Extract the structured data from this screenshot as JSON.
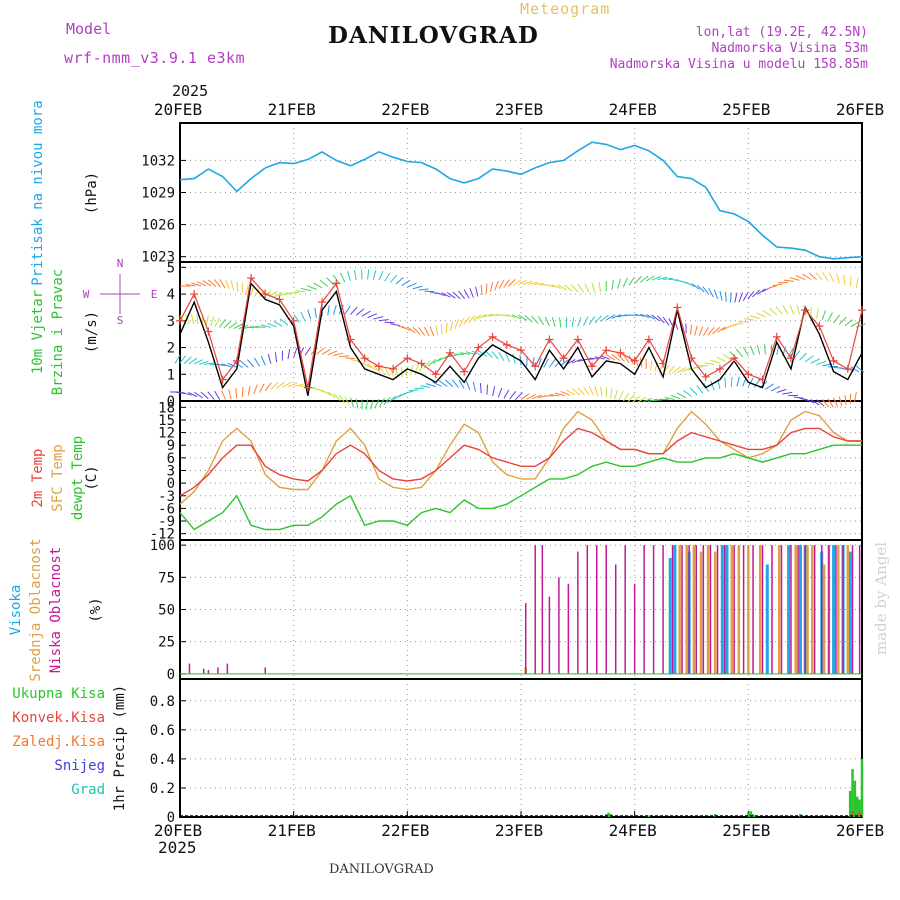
{
  "header": {
    "title": "DANILOVGRAD",
    "subtitle": "Meteogram",
    "model_label": "Model",
    "model_name": "wrf-nmm_v3.9.1  e3km",
    "coords": "lon,lat (19.2E, 42.5N)",
    "elevation": "Nadmorska Visina 53m",
    "model_elevation": "Nadmorska Visina u modelu 158.85m",
    "credit": "made by Angel",
    "footer": "DANILOVGRAD",
    "year": "2025"
  },
  "colors": {
    "pressure": "#1ea7e6",
    "wind_speed": "#000000",
    "gust": "#e8443c",
    "temp2m": "#e8443c",
    "sfc_temp": "#e0a040",
    "dewpoint": "#2bc42b",
    "high_cloud": "#1ea7e6",
    "mid_cloud": "#e0a040",
    "low_cloud": "#c0189a",
    "total_precip": "#2bc42b",
    "conv_precip": "#e8443c",
    "frozen_precip": "#f07a30",
    "snow": "#4040e0",
    "graupel": "#20c0b0",
    "meta": "#b040c0"
  },
  "chart_data": [
    {
      "type": "line",
      "title": "Pritisak na nivou mora",
      "ylabel": "(hPa)",
      "ylim": [
        1022.5,
        1035.5
      ],
      "yticks": [
        1023,
        1026,
        1029,
        1032
      ],
      "xlim": [
        0,
        144
      ],
      "xtick_labels": [
        "20FEB",
        "21FEB",
        "22FEB",
        "23FEB",
        "24FEB",
        "25FEB",
        "26FEB"
      ],
      "series": [
        {
          "name": "MSLP",
          "x": [
            0,
            3,
            6,
            9,
            12,
            15,
            18,
            21,
            24,
            27,
            30,
            33,
            36,
            39,
            42,
            45,
            48,
            51,
            54,
            57,
            60,
            63,
            66,
            69,
            72,
            75,
            78,
            81,
            84,
            87,
            90,
            93,
            96,
            99,
            102,
            105,
            108,
            111,
            114,
            117,
            120,
            123,
            126,
            129,
            132,
            135,
            138,
            141,
            144
          ],
          "values": [
            1030.2,
            1030.3,
            1031.2,
            1030.5,
            1029.1,
            1030.3,
            1031.3,
            1031.8,
            1031.7,
            1032.1,
            1032.8,
            1032.0,
            1031.5,
            1032.1,
            1032.8,
            1032.3,
            1031.9,
            1031.8,
            1031.2,
            1030.3,
            1029.9,
            1030.3,
            1031.2,
            1031.0,
            1030.7,
            1031.3,
            1031.8,
            1032.0,
            1032.9,
            1033.7,
            1033.5,
            1033.0,
            1033.4,
            1032.9,
            1032.0,
            1030.5,
            1030.3,
            1029.5,
            1027.3,
            1027.0,
            1026.3,
            1025.0,
            1023.9,
            1023.8,
            1023.6,
            1023.0,
            1022.8,
            1022.9,
            1023.0
          ]
        }
      ]
    },
    {
      "type": "line",
      "title": "10m Vjetar Brzina i Pravac",
      "ylabel": "(m/s)",
      "ylim": [
        0,
        5.2
      ],
      "yticks": [
        0,
        1,
        2,
        3,
        4,
        5
      ],
      "xlim": [
        0,
        144
      ],
      "compass": [
        "N",
        "E",
        "S",
        "W"
      ],
      "series": [
        {
          "name": "speed",
          "x": [
            0,
            3,
            6,
            9,
            12,
            15,
            18,
            21,
            24,
            27,
            30,
            33,
            36,
            39,
            42,
            45,
            48,
            51,
            54,
            57,
            60,
            63,
            66,
            69,
            72,
            75,
            78,
            81,
            84,
            87,
            90,
            93,
            96,
            99,
            102,
            105,
            108,
            111,
            114,
            117,
            120,
            123,
            126,
            129,
            132,
            135,
            138,
            141,
            144
          ],
          "values": [
            2.5,
            3.7,
            2.2,
            0.5,
            1.2,
            4.4,
            3.8,
            3.6,
            2.8,
            0.2,
            3.4,
            4.1,
            2.0,
            1.2,
            1.0,
            0.8,
            1.2,
            1.0,
            0.7,
            1.3,
            0.7,
            1.6,
            2.1,
            1.8,
            1.5,
            0.8,
            1.9,
            1.2,
            2.0,
            0.9,
            1.5,
            1.4,
            1.0,
            2.0,
            0.9,
            3.4,
            1.2,
            0.5,
            0.8,
            1.5,
            0.7,
            0.5,
            2.2,
            1.2,
            3.5,
            2.5,
            1.1,
            0.8,
            1.8
          ]
        },
        {
          "name": "gust",
          "x": [
            0,
            3,
            6,
            9,
            12,
            15,
            18,
            21,
            24,
            27,
            30,
            33,
            36,
            39,
            42,
            45,
            48,
            51,
            54,
            57,
            60,
            63,
            66,
            69,
            72,
            75,
            78,
            81,
            84,
            87,
            90,
            93,
            96,
            99,
            102,
            105,
            108,
            111,
            114,
            117,
            120,
            123,
            126,
            129,
            132,
            135,
            138,
            141,
            144
          ],
          "values": [
            3.0,
            4.0,
            2.6,
            0.8,
            1.5,
            4.6,
            4.0,
            3.8,
            3.0,
            0.5,
            3.7,
            4.4,
            2.3,
            1.6,
            1.3,
            1.2,
            1.6,
            1.4,
            1.0,
            1.8,
            1.1,
            2.0,
            2.4,
            2.1,
            1.9,
            1.3,
            2.3,
            1.6,
            2.3,
            1.3,
            1.9,
            1.8,
            1.5,
            2.3,
            1.4,
            3.5,
            1.6,
            0.9,
            1.2,
            1.6,
            1.0,
            0.8,
            2.4,
            1.6,
            3.4,
            2.8,
            1.5,
            1.2,
            3.4
          ]
        }
      ]
    },
    {
      "type": "line",
      "title": "2m Temp / SFC Temp / dewpt Temp",
      "ylabel": "(C)",
      "ylim": [
        -13.5,
        19.5
      ],
      "yticks": [
        -12,
        -9,
        -6,
        -3,
        0,
        3,
        6,
        9,
        12,
        15,
        18
      ],
      "xlim": [
        0,
        144
      ],
      "series": [
        {
          "name": "2m Temp",
          "x": [
            0,
            3,
            6,
            9,
            12,
            15,
            18,
            21,
            24,
            27,
            30,
            33,
            36,
            39,
            42,
            45,
            48,
            51,
            54,
            57,
            60,
            63,
            66,
            69,
            72,
            75,
            78,
            81,
            84,
            87,
            90,
            93,
            96,
            99,
            102,
            105,
            108,
            111,
            114,
            117,
            120,
            123,
            126,
            129,
            132,
            135,
            138,
            141,
            144
          ],
          "values": [
            -3,
            -1,
            2,
            6,
            9,
            9,
            4,
            2,
            1,
            0.5,
            3,
            7,
            9,
            7,
            3,
            1,
            0.5,
            1,
            3,
            6,
            9,
            8,
            6,
            5,
            4,
            4,
            6,
            10,
            13,
            12,
            10,
            8,
            8,
            7,
            7,
            10,
            12,
            11,
            10,
            9,
            8,
            8,
            9,
            12,
            13,
            13,
            11,
            10,
            10
          ]
        },
        {
          "name": "SFC Temp",
          "x": [
            0,
            3,
            6,
            9,
            12,
            15,
            18,
            21,
            24,
            27,
            30,
            33,
            36,
            39,
            42,
            45,
            48,
            51,
            54,
            57,
            60,
            63,
            66,
            69,
            72,
            75,
            78,
            81,
            84,
            87,
            90,
            93,
            96,
            99,
            102,
            105,
            108,
            111,
            114,
            117,
            120,
            123,
            126,
            129,
            132,
            135,
            138,
            141,
            144
          ],
          "values": [
            -5,
            -2,
            3,
            10,
            13,
            10,
            2,
            -1,
            -1.5,
            -1.5,
            3,
            10,
            13,
            9,
            1,
            -1,
            -1.5,
            -1,
            3,
            9,
            14,
            12,
            5,
            2,
            1,
            1,
            6,
            13,
            17,
            15,
            10,
            8,
            8,
            7,
            7,
            13,
            17,
            14,
            10,
            8,
            6,
            7,
            9,
            15,
            17,
            16,
            12,
            10,
            10
          ]
        },
        {
          "name": "dewpt Temp",
          "x": [
            0,
            3,
            6,
            9,
            12,
            15,
            18,
            21,
            24,
            27,
            30,
            33,
            36,
            39,
            42,
            45,
            48,
            51,
            54,
            57,
            60,
            63,
            66,
            69,
            72,
            75,
            78,
            81,
            84,
            87,
            90,
            93,
            96,
            99,
            102,
            105,
            108,
            111,
            114,
            117,
            120,
            123,
            126,
            129,
            132,
            135,
            138,
            141,
            144
          ],
          "values": [
            -7,
            -11,
            -9,
            -7,
            -3,
            -10,
            -11,
            -11,
            -10,
            -10,
            -8,
            -5,
            -3,
            -10,
            -9,
            -9,
            -10,
            -7,
            -6,
            -7,
            -4,
            -6,
            -6,
            -5,
            -3,
            -1,
            1,
            1,
            2,
            4,
            5,
            4,
            4,
            5,
            6,
            5,
            5,
            6,
            6,
            7,
            6,
            5,
            6,
            7,
            7,
            8,
            9,
            9,
            9
          ]
        }
      ]
    },
    {
      "type": "bar",
      "title": "Visoka / Srednja / Niska Oblacnost",
      "ylabel": "(%)",
      "ylim": [
        -4,
        104
      ],
      "yticks": [
        0,
        25,
        50,
        75,
        100
      ],
      "xlim": [
        0,
        144
      ],
      "series": [
        {
          "name": "Visoka Oblacnost",
          "x": [
            103.5,
            104.5,
            107.5,
            114.5,
            115.5,
            124,
            128.5,
            131,
            132,
            135.5,
            138,
            140,
            141.5
          ],
          "values": [
            90,
            100,
            95,
            100,
            100,
            85,
            100,
            100,
            100,
            95,
            100,
            100,
            95
          ]
        },
        {
          "name": "Srednja Oblacnost",
          "x": [
            73,
            105.5,
            107,
            108.5,
            110,
            111.5,
            113,
            116.5,
            118,
            120,
            122.5,
            126.5,
            130,
            132.5,
            133.5,
            136,
            137,
            139,
            141
          ],
          "values": [
            5,
            100,
            100,
            100,
            95,
            100,
            95,
            100,
            100,
            100,
            100,
            100,
            100,
            100,
            100,
            85,
            100,
            100,
            100
          ]
        },
        {
          "name": "Niska Oblacnost",
          "x": [
            2,
            5,
            6,
            8,
            10,
            18,
            73,
            75,
            76.5,
            78,
            80,
            82,
            84,
            86,
            88,
            90,
            92,
            94,
            96,
            98,
            100,
            102,
            104,
            106,
            107.5,
            109,
            110.5,
            112,
            113.5,
            115,
            117,
            119,
            121,
            123,
            125,
            127,
            129,
            130.5,
            132,
            134,
            135.5,
            137,
            138.5,
            140,
            142,
            143.5
          ],
          "values": [
            8,
            4,
            3,
            5,
            8,
            5,
            55,
            100,
            100,
            60,
            75,
            70,
            95,
            100,
            100,
            100,
            85,
            100,
            70,
            100,
            100,
            100,
            100,
            100,
            100,
            100,
            100,
            100,
            100,
            100,
            100,
            100,
            100,
            100,
            100,
            100,
            100,
            100,
            100,
            100,
            100,
            100,
            100,
            100,
            100,
            100
          ]
        }
      ]
    },
    {
      "type": "bar",
      "title": "1hr Precip",
      "ylabel": "1hr Precip (mm)",
      "legend": [
        "Ukupna Kisa",
        "Konvek.Kisa",
        "Zaledj.Kisa",
        "Snijeg",
        "Grad"
      ],
      "ylim": [
        0,
        0.95
      ],
      "yticks": [
        0,
        0.2,
        0.4,
        0.6,
        0.8
      ],
      "xlim": [
        0,
        144
      ],
      "series": [
        {
          "name": "Ukupna Kisa",
          "x": [
            90,
            90.5,
            91,
            98.5,
            99,
            113,
            120,
            120.5,
            121,
            121.5,
            131,
            141.5,
            142,
            142.5,
            143,
            143.5,
            144
          ],
          "values": [
            0.02,
            0.03,
            0.02,
            0.01,
            0.01,
            0.02,
            0.03,
            0.04,
            0.02,
            0.01,
            0.02,
            0.18,
            0.33,
            0.25,
            0.14,
            0.12,
            0.4
          ]
        },
        {
          "name": "Konvek.Kisa",
          "x": [
            142,
            143.5
          ],
          "values": [
            0.04,
            0.03
          ]
        }
      ]
    }
  ]
}
